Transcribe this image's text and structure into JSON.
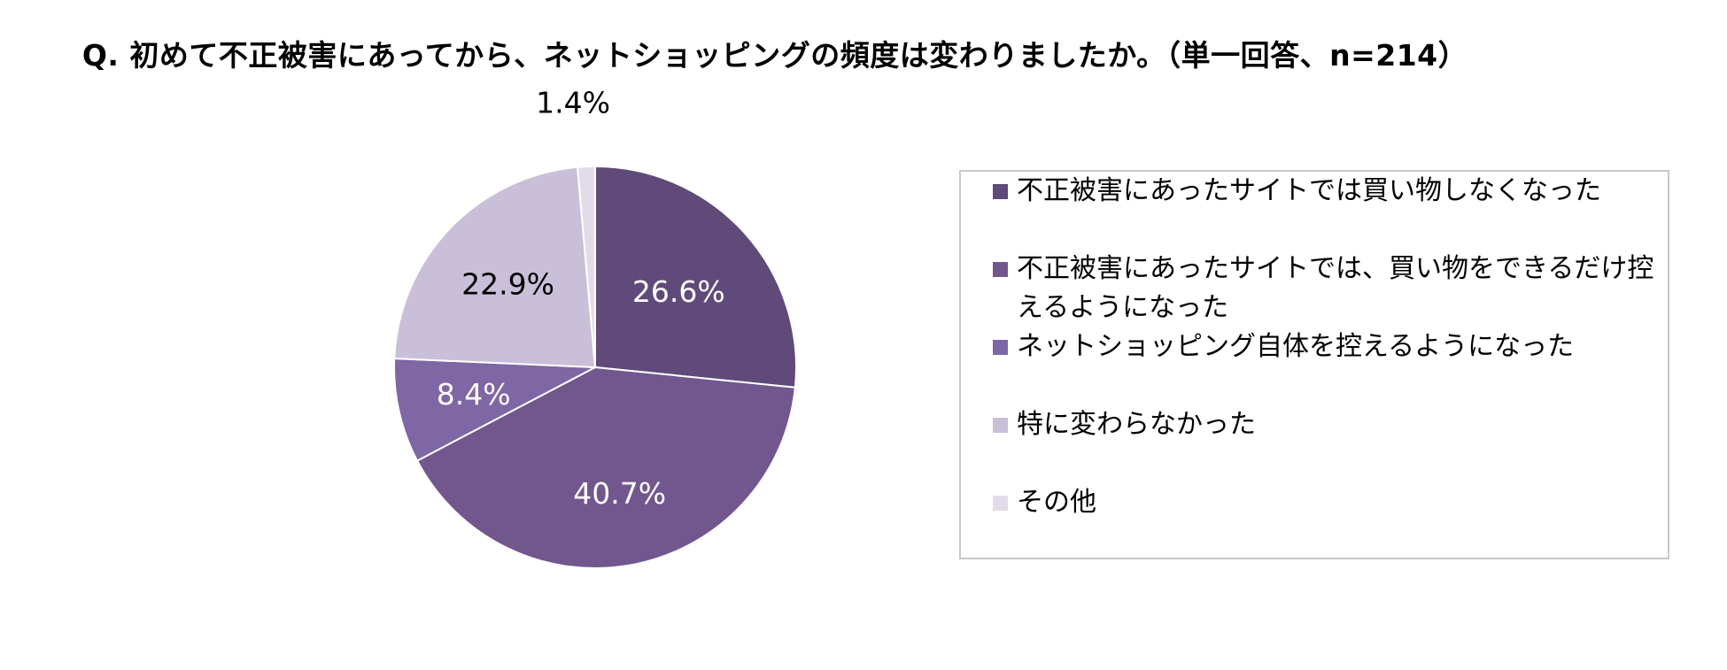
{
  "title": "Q. 初めて不正被害にあってから、ネットショッピングの頻度は変わりましたか。（単一回答、n=214）",
  "chart_data": {
    "type": "pie",
    "title": "Q. 初めて不正被害にあってから、ネットショッピングの頻度は変わりましたか。（単一回答、n=214）",
    "categories": [
      "不正被害にあったサイトでは買い物しなくなった",
      "不正被害にあったサイトでは、買い物をできるだけ控えるようになった",
      "ネットショッピング自体を控えるようになった",
      "特に変わらなかった",
      "その他"
    ],
    "values": [
      26.6,
      40.7,
      8.4,
      22.9,
      1.4
    ],
    "labels": [
      "26.6%",
      "40.7%",
      "8.4%",
      "22.9%",
      "1.4%"
    ],
    "colors": [
      "#5f4a7a",
      "#71578e",
      "#7f66a4",
      "#c9bfd9",
      "#e2dcea"
    ],
    "label_colors": [
      "#ffffff",
      "#ffffff",
      "#ffffff",
      "#000000",
      "#000000"
    ],
    "start_angle_deg": 0,
    "direction": "clockwise",
    "legend_position": "right"
  },
  "legend": {
    "items": [
      {
        "label": "不正被害にあったサイトでは買い物しなくなった",
        "color": "#5f4a7a"
      },
      {
        "label": "不正被害にあったサイトでは、買い物をできるだけ控えるようになった",
        "color": "#71578e"
      },
      {
        "label": "ネットショッピング自体を控えるようになった",
        "color": "#7f66a4"
      },
      {
        "label": "特に変わらなかった",
        "color": "#c9bfd9"
      },
      {
        "label": "その他",
        "color": "#e2dcea"
      }
    ]
  }
}
